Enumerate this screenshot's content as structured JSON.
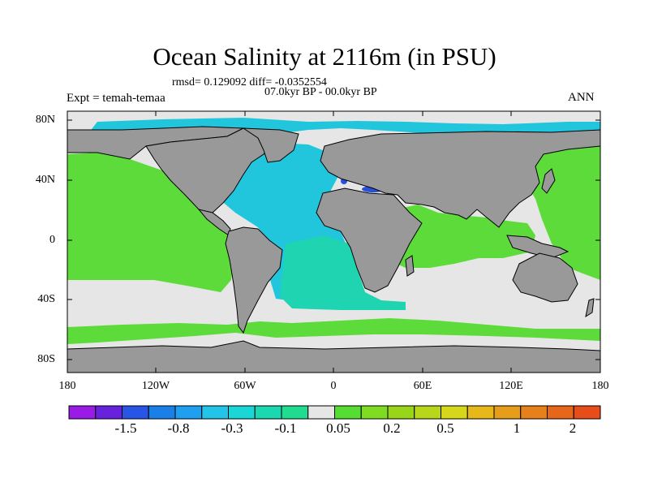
{
  "title": "Ocean Salinity at 2116m (in PSU)",
  "stats": "rmsd= 0.129092 diff= -0.0352554",
  "period": "07.0kyr BP - 00.0kyr BP",
  "experiment": "Expt = temah-temaa",
  "season": "ANN",
  "lat_ticks": [
    "80N",
    "40N",
    "0",
    "40S",
    "80S"
  ],
  "lon_ticks": [
    "180",
    "120W",
    "60W",
    "0",
    "60E",
    "120E",
    "180"
  ],
  "colorbar": {
    "labels": [
      "-1.5",
      "-0.8",
      "-0.3",
      "-0.1",
      "0.05",
      "0.2",
      "0.5",
      "1",
      "2"
    ],
    "colors": [
      "#9a1ae6",
      "#6622dd",
      "#2855e6",
      "#1a7fe6",
      "#1e9ff0",
      "#22c4e8",
      "#1ad6d6",
      "#1ad9b0",
      "#1fdc90",
      "#e6e6e6",
      "#55dd33",
      "#7fdc22",
      "#99d61a",
      "#b8d61a",
      "#d6d61a",
      "#e6b81a",
      "#e69d1a",
      "#e6801a",
      "#e6661a",
      "#e64d1a"
    ]
  },
  "colors": {
    "land": "#999999",
    "near_zero": "#e6e6e6",
    "positive_small": "#5ddb3a",
    "negative_small": "#22c6dc",
    "negative_mid": "#1fd4b0",
    "negative_large": "#2a4fd9"
  }
}
